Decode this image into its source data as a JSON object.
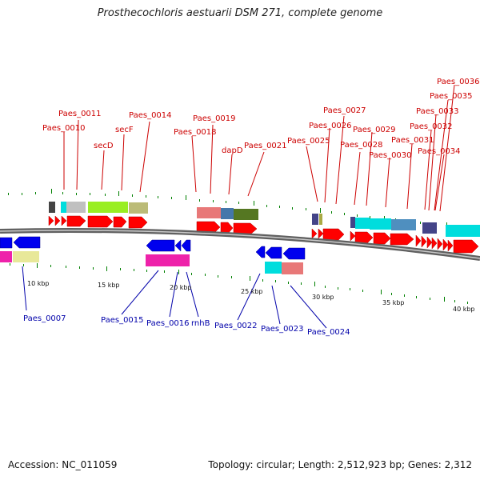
{
  "title": "Prosthecochloris aestuarii DSM 271, complete genome",
  "accession": "Accession: NC_011059",
  "topology": "Topology: circular; Length: 2,512,923 bp; Genes: 2,312",
  "colors": {
    "label_forward": "#cc0000",
    "label_reverse": "#0000aa",
    "gene_forward": "#ff0000",
    "gene_reverse": "#0000ee",
    "backbone": "#808080",
    "tick": "#008000"
  },
  "kbp_labels": [
    "10 kbp",
    "15 kbp",
    "20 kbp",
    "25 kbp",
    "30 kbp",
    "35 kbp",
    "40 kbp"
  ],
  "forward_labels": [
    "Paes_0010",
    "Paes_0011",
    "secD",
    "secF",
    "Paes_0014",
    "Paes_0018",
    "Paes_0019",
    "dapD",
    "Paes_0021",
    "Paes_0025",
    "Paes_0026",
    "Paes_0027",
    "Paes_0028",
    "Paes_0029",
    "Paes_0030",
    "Paes_0031",
    "Paes_0032",
    "Paes_0033",
    "Paes_0034",
    "Paes_0035",
    "Paes_0036"
  ],
  "reverse_labels": [
    "Paes_0007",
    "Paes_0015",
    "Paes_0016",
    "rnhB",
    "Paes_0022",
    "Paes_0023",
    "Paes_0024"
  ]
}
